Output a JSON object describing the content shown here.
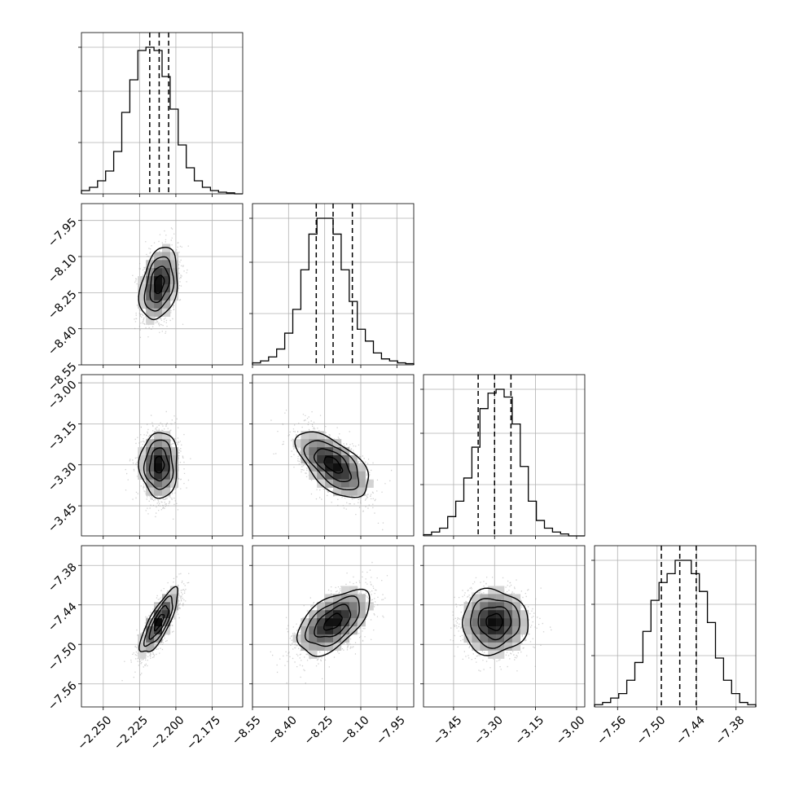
{
  "chart_data": {
    "type": "corner",
    "parameters": [
      {
        "range": [
          -2.265,
          -2.154
        ],
        "ticks": [
          -2.25,
          -2.225,
          -2.2,
          -2.175
        ],
        "tick_labels": [
          "−2.250",
          "−2.225",
          "−2.200",
          "−2.175"
        ],
        "quantiles": [
          -2.218,
          -2.2115,
          -2.205
        ],
        "mean": -2.2115,
        "sd": 0.0065,
        "hist_counts": [
          1,
          2,
          4,
          7,
          13,
          25,
          35,
          44,
          45,
          44,
          36,
          26,
          15,
          8,
          4,
          2,
          1,
          0.5,
          0.3,
          0
        ]
      },
      {
        "range": [
          -8.55,
          -7.88
        ],
        "ticks": [
          -8.55,
          -8.4,
          -8.25,
          -8.1,
          -7.95
        ],
        "tick_labels": [
          "−8.55",
          "−8.40",
          "−8.25",
          "−8.10",
          "−7.95"
        ],
        "quantiles": [
          -8.285,
          -8.215,
          -8.135
        ],
        "mean": -8.215,
        "sd": 0.075,
        "hist_counts": [
          0.5,
          1,
          2,
          4,
          8,
          14,
          24,
          33,
          37,
          37,
          33,
          24,
          16,
          9,
          6,
          3,
          1.5,
          1,
          0.5,
          0.3
        ]
      },
      {
        "range": [
          -3.56,
          -2.97
        ],
        "ticks": [
          -3.45,
          -3.3,
          -3.15,
          -3.0
        ],
        "tick_labels": [
          "−3.45",
          "−3.30",
          "−3.15",
          "−3.00"
        ],
        "quantiles": [
          -3.36,
          -3.3,
          -3.24
        ],
        "mean": -3.3,
        "sd": 0.06,
        "hist_counts": [
          0.3,
          1,
          2,
          5,
          9,
          15,
          23,
          33,
          37,
          38,
          36,
          29,
          18,
          9,
          4,
          2,
          1,
          0.5,
          0,
          0
        ]
      },
      {
        "range": [
          -7.595,
          -7.35
        ],
        "ticks": [
          -7.56,
          -7.5,
          -7.44,
          -7.38
        ],
        "tick_labels": [
          "−7.56",
          "−7.50",
          "−7.44",
          "−7.38"
        ],
        "quantiles": [
          -7.4935,
          -7.4655,
          -7.4405
        ],
        "mean": -7.466,
        "sd": 0.0245,
        "hist_counts": [
          0.5,
          1,
          2,
          3,
          6,
          10,
          17,
          24,
          28,
          30,
          33,
          33,
          30,
          26,
          19,
          11,
          6,
          3,
          1,
          0.5
        ]
      }
    ],
    "correlations": [
      [
        1.0,
        0.3,
        0.0,
        0.8
      ],
      [
        0.3,
        1.0,
        -0.6,
        0.55
      ],
      [
        0.0,
        -0.6,
        1.0,
        0.0
      ],
      [
        0.8,
        0.55,
        0.0,
        1.0
      ]
    ],
    "grid": true,
    "contour_levels_sigma": [
      0.5,
      1.0,
      1.5,
      2.0
    ]
  },
  "colors": {
    "background": "#ffffff",
    "line": "#000000",
    "grid": "#b0b0b0",
    "points": "#9a9a9a"
  }
}
